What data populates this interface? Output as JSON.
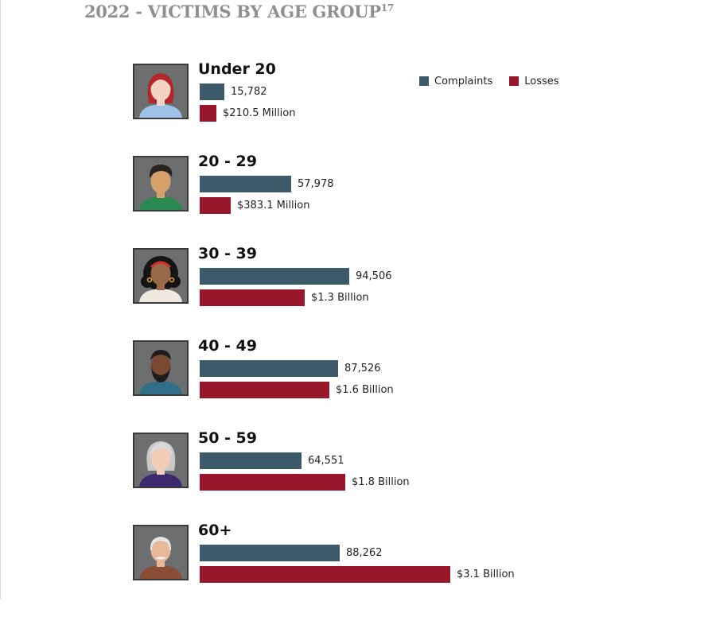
{
  "title": {
    "text": "2022 - VICTIMS BY AGE GROUP",
    "footnote": "17"
  },
  "legend": [
    {
      "label": "Complaints",
      "color": "#3d5a6a"
    },
    {
      "label": "Losses",
      "color": "#98172a"
    }
  ],
  "colors": {
    "complaints": "#3d5a6a",
    "losses": "#98172a",
    "portrait_bg": "#6d6e70"
  },
  "chart_data": {
    "type": "bar",
    "orientation": "horizontal",
    "title": "2022 - VICTIMS BY AGE GROUP",
    "categories": [
      "Under 20",
      "20 - 29",
      "30 - 39",
      "40 - 49",
      "50 - 59",
      "60+"
    ],
    "legend_position": "top-right",
    "grid": false,
    "series": [
      {
        "name": "Complaints",
        "values": [
          15782,
          57978,
          94506,
          87526,
          64551,
          88262
        ],
        "labels": [
          "15,782",
          "57,978",
          "94,506",
          "87,526",
          "64,551",
          "88,262"
        ]
      },
      {
        "name": "Losses",
        "unit": "USD",
        "values": [
          210500000,
          383100000,
          1300000000,
          1600000000,
          1800000000,
          3100000000
        ],
        "labels": [
          "$210.5 Million",
          "$383.1 Million",
          "$1.3 Billion",
          "$1.6 Billion",
          "$1.8 Billion",
          "$3.1 Billion"
        ]
      }
    ]
  },
  "portraits": [
    {
      "icon": "young-woman-red-hair-icon"
    },
    {
      "icon": "young-man-dark-hair-icon"
    },
    {
      "icon": "woman-curly-hair-icon"
    },
    {
      "icon": "bearded-man-icon"
    },
    {
      "icon": "gray-haired-woman-icon"
    },
    {
      "icon": "elderly-man-mustache-icon"
    }
  ]
}
